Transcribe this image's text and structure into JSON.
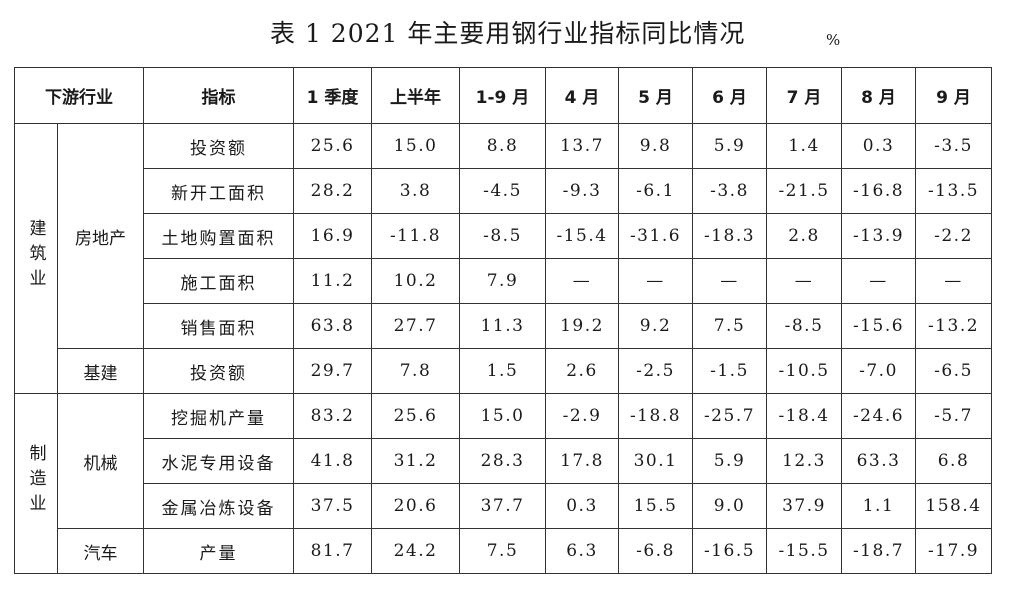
{
  "title": {
    "text": "表 1  2021 年主要用钢行业指标同比情况",
    "unit": "%"
  },
  "headers": {
    "industry": "下游行业",
    "indicator": "指标",
    "periods": [
      "1 季度",
      "上半年",
      "1-9 月",
      "4 月",
      "5 月",
      "6 月",
      "7 月",
      "8 月",
      "9 月"
    ]
  },
  "sectors": {
    "construction": "建筑业",
    "manufacturing": "制造业"
  },
  "subsectors": {
    "real_estate": "房地产",
    "infrastructure": "基建",
    "machinery": "机械",
    "auto": "汽车"
  },
  "rows": [
    {
      "indicator": "投资额",
      "values": [
        "25.6",
        "15.0",
        "8.8",
        "13.7",
        "9.8",
        "5.9",
        "1.4",
        "0.3",
        "-3.5"
      ]
    },
    {
      "indicator": "新开工面积",
      "values": [
        "28.2",
        "3.8",
        "-4.5",
        "-9.3",
        "-6.1",
        "-3.8",
        "-21.5",
        "-16.8",
        "-13.5"
      ]
    },
    {
      "indicator": "土地购置面积",
      "values": [
        "16.9",
        "-11.8",
        "-8.5",
        "-15.4",
        "-31.6",
        "-18.3",
        "2.8",
        "-13.9",
        "-2.2"
      ]
    },
    {
      "indicator": "施工面积",
      "values": [
        "11.2",
        "10.2",
        "7.9",
        "—",
        "—",
        "—",
        "—",
        "—",
        "—"
      ]
    },
    {
      "indicator": "销售面积",
      "values": [
        "63.8",
        "27.7",
        "11.3",
        "19.2",
        "9.2",
        "7.5",
        "-8.5",
        "-15.6",
        "-13.2"
      ]
    },
    {
      "indicator": "投资额",
      "values": [
        "29.7",
        "7.8",
        "1.5",
        "2.6",
        "-2.5",
        "-1.5",
        "-10.5",
        "-7.0",
        "-6.5"
      ]
    },
    {
      "indicator": "挖掘机产量",
      "values": [
        "83.2",
        "25.6",
        "15.0",
        "-2.9",
        "-18.8",
        "-25.7",
        "-18.4",
        "-24.6",
        "-5.7"
      ]
    },
    {
      "indicator": "水泥专用设备",
      "values": [
        "41.8",
        "31.2",
        "28.3",
        "17.8",
        "30.1",
        "5.9",
        "12.3",
        "63.3",
        "6.8"
      ]
    },
    {
      "indicator": "金属冶炼设备",
      "values": [
        "37.5",
        "20.6",
        "37.7",
        "0.3",
        "15.5",
        "9.0",
        "37.9",
        "1.1",
        "158.4"
      ]
    },
    {
      "indicator": "产量",
      "values": [
        "81.7",
        "24.2",
        "7.5",
        "6.3",
        "-6.8",
        "-16.5",
        "-15.5",
        "-18.7",
        "-17.9"
      ]
    }
  ]
}
